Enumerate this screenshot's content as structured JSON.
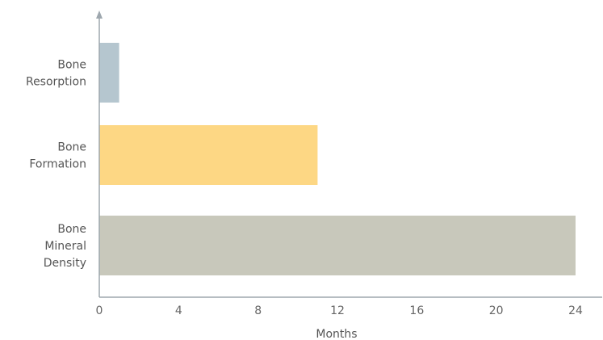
{
  "chart_data": {
    "type": "bar",
    "orientation": "horizontal",
    "categories": [
      [
        "Bone",
        "Resorption"
      ],
      [
        "Bone",
        "Formation"
      ],
      [
        "Bone",
        "Mineral",
        "Density"
      ]
    ],
    "values": [
      1.0,
      11.0,
      24.0
    ],
    "colors": [
      "#b5c6cf",
      "#fdd784",
      "#c8c8bb"
    ],
    "xlabel": "Months",
    "ylabel": "",
    "title": "",
    "xlim": [
      0,
      24
    ],
    "xticks": [
      "0",
      "4",
      "8",
      "12",
      "16",
      "20",
      "24"
    ],
    "grid": false,
    "axis_color": "#9ea7ae"
  }
}
